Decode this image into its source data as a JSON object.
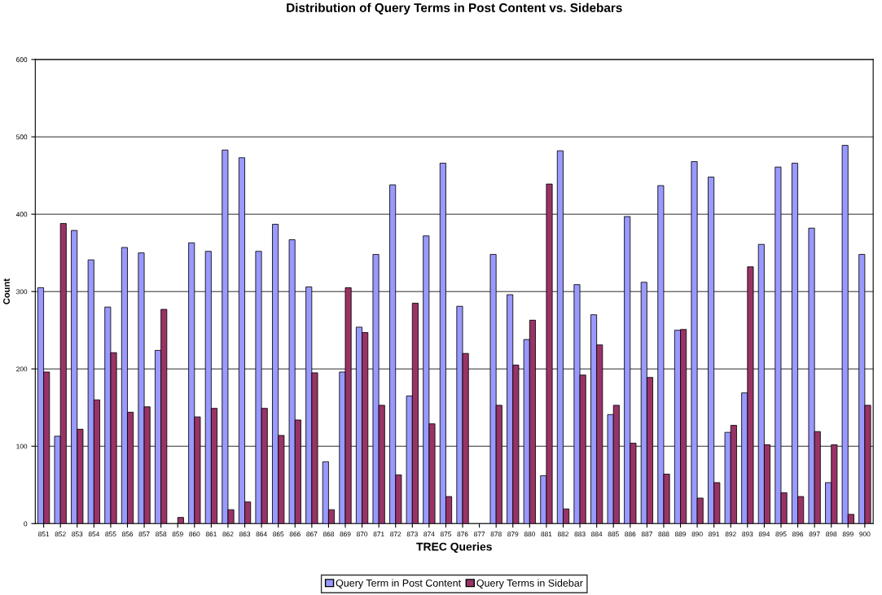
{
  "chart_data": {
    "type": "bar",
    "title": "Distribution of Query Terms in Post Content vs. Sidebars",
    "xlabel": "TREC Queries",
    "ylabel": "Count",
    "categories": [
      "851",
      "852",
      "853",
      "854",
      "855",
      "856",
      "857",
      "858",
      "859",
      "860",
      "861",
      "862",
      "863",
      "864",
      "865",
      "866",
      "867",
      "868",
      "869",
      "870",
      "871",
      "872",
      "873",
      "874",
      "875",
      "876",
      "877",
      "878",
      "879",
      "880",
      "881",
      "882",
      "883",
      "884",
      "885",
      "886",
      "887",
      "888",
      "889",
      "890",
      "891",
      "892",
      "893",
      "894",
      "895",
      "896",
      "897",
      "898",
      "899",
      "900"
    ],
    "series": [
      {
        "name": "Query Term in Post Content",
        "color": "#9999ff",
        "values": [
          305,
          113,
          379,
          341,
          280,
          357,
          350,
          224,
          0,
          363,
          352,
          483,
          473,
          352,
          387,
          367,
          306,
          80,
          196,
          254,
          348,
          438,
          165,
          372,
          466,
          281,
          0,
          348,
          296,
          238,
          62,
          482,
          309,
          270,
          141,
          397,
          312,
          437,
          250,
          468,
          448,
          118,
          169,
          361,
          461,
          466,
          382,
          53,
          489,
          348
        ]
      },
      {
        "name": "Query Terms in Sidebar",
        "color": "#993366",
        "values": [
          196,
          388,
          122,
          160,
          221,
          144,
          151,
          277,
          8,
          138,
          149,
          18,
          28,
          149,
          114,
          134,
          195,
          18,
          305,
          247,
          153,
          63,
          285,
          129,
          35,
          220,
          0,
          153,
          205,
          263,
          439,
          19,
          192,
          231,
          153,
          104,
          189,
          64,
          251,
          33,
          53,
          127,
          332,
          102,
          40,
          35,
          119,
          102,
          12,
          153
        ]
      }
    ],
    "ylim": [
      0,
      600
    ],
    "yticks": [
      0,
      100,
      200,
      300,
      400,
      500,
      600
    ],
    "grid": "y",
    "legend": "bottom"
  }
}
